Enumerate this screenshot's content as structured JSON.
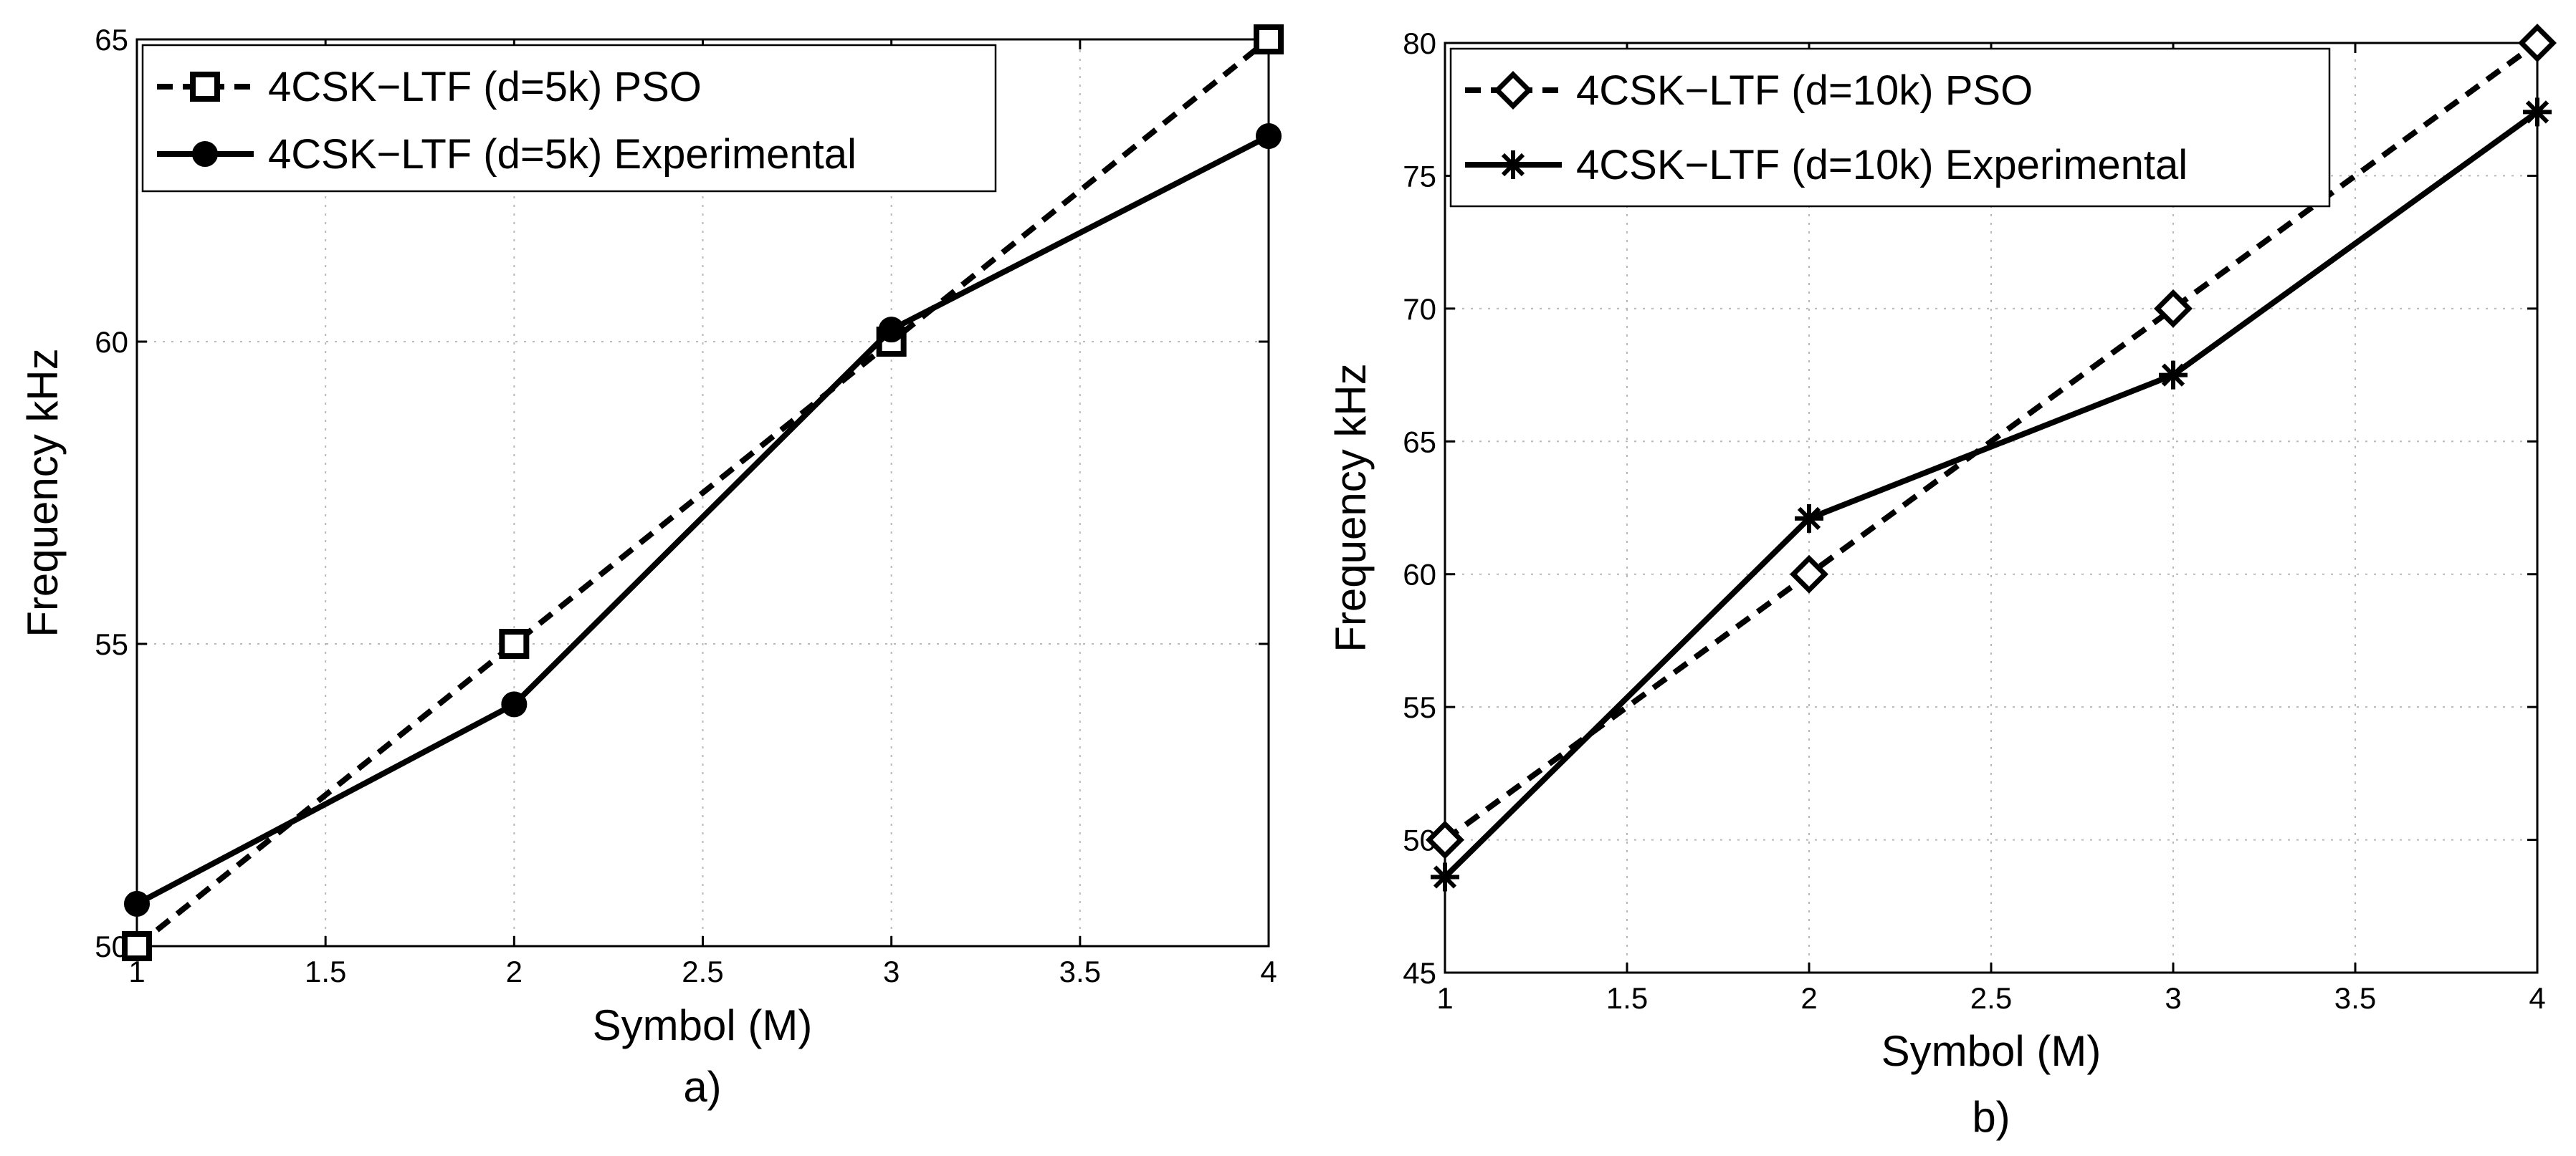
{
  "chart_data": [
    {
      "type": "line",
      "caption": "a)",
      "xlabel": "Symbol (M)",
      "ylabel": "Frequency  kHz",
      "xlim": [
        1,
        4
      ],
      "ylim": [
        50,
        65
      ],
      "xticks": [
        1,
        1.5,
        2,
        2.5,
        3,
        3.5,
        4
      ],
      "yticks": [
        50,
        55,
        60,
        65
      ],
      "grid": true,
      "legend_position": "top-left",
      "series": [
        {
          "name": "4CSK−LTF (d=5k) PSO",
          "linestyle": "dashed",
          "marker": "square",
          "color": "#000000",
          "x": [
            1,
            2,
            3,
            4
          ],
          "y": [
            50,
            55,
            60,
            65
          ]
        },
        {
          "name": "4CSK−LTF (d=5k) Experimental",
          "linestyle": "solid",
          "marker": "circle",
          "color": "#000000",
          "x": [
            1,
            2,
            3,
            4
          ],
          "y": [
            50.7,
            54,
            60.2,
            63.4
          ]
        }
      ]
    },
    {
      "type": "line",
      "caption": "b)",
      "xlabel": "Symbol (M)",
      "ylabel": "Frequency  kHz",
      "xlim": [
        1,
        4
      ],
      "ylim": [
        45,
        80
      ],
      "xticks": [
        1,
        1.5,
        2,
        2.5,
        3,
        3.5,
        4
      ],
      "yticks": [
        45,
        50,
        55,
        60,
        65,
        70,
        75,
        80
      ],
      "grid": true,
      "legend_position": "top-left",
      "series": [
        {
          "name": "4CSK−LTF (d=10k) PSO",
          "linestyle": "dashed",
          "marker": "diamond",
          "color": "#000000",
          "x": [
            1,
            2,
            3,
            4
          ],
          "y": [
            50,
            60,
            70,
            80
          ]
        },
        {
          "name": "4CSK−LTF (d=10k) Experimental",
          "linestyle": "solid",
          "marker": "asterisk",
          "color": "#000000",
          "x": [
            1,
            2,
            3,
            4
          ],
          "y": [
            48.6,
            62.1,
            67.5,
            77.4
          ]
        }
      ]
    }
  ]
}
